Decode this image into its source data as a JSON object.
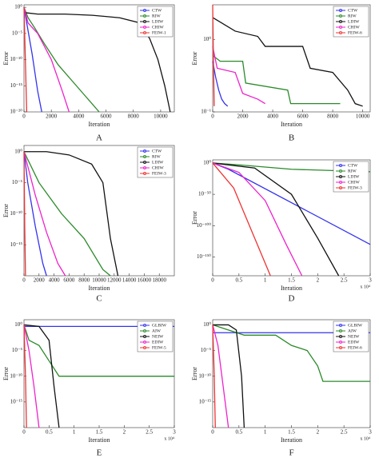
{
  "chart_data": [
    {
      "type": "line",
      "caption": "A",
      "x_label": "Iteration",
      "y_label": "Error",
      "log_y": true,
      "legend": "upper right",
      "xlim": [
        0,
        11000
      ],
      "xticks": [
        0,
        2000,
        4000,
        6000,
        8000,
        10000
      ],
      "ylim": [
        1e-20,
        3
      ],
      "yticks": [
        {
          "value": 1,
          "label": "10⁰"
        },
        {
          "value": 1e-05,
          "label": "10⁻⁵"
        },
        {
          "value": 1e-10,
          "label": "10⁻¹⁰"
        },
        {
          "value": 1e-15,
          "label": "10⁻¹⁵"
        },
        {
          "value": 1e-20,
          "label": "10⁻²⁰"
        }
      ],
      "series": [
        {
          "name": "CTW",
          "color": "#3333ee",
          "x": [
            0,
            200,
            600,
            1000,
            1300
          ],
          "values": [
            1,
            0.001,
            1e-09,
            1e-16,
            1e-20
          ]
        },
        {
          "name": "RIW",
          "color": "#2a8a2a",
          "x": [
            0,
            300,
            800,
            1500,
            2500,
            3500,
            4500,
            5500
          ],
          "values": [
            1,
            0.01,
            0.0001,
            1e-07,
            1e-11,
            1e-14,
            1e-17,
            1e-20
          ]
        },
        {
          "name": "LDIW",
          "color": "#111111",
          "x": [
            0,
            1000,
            3000,
            5000,
            7000,
            8500,
            9200,
            9800,
            10300,
            10700
          ],
          "values": [
            0.1,
            0.05,
            0.05,
            0.03,
            0.01,
            0.001,
            1e-06,
            1e-10,
            1e-15,
            1e-20
          ]
        },
        {
          "name": "CHIW",
          "color": "#ee22cc",
          "x": [
            0,
            300,
            1000,
            2000,
            2800,
            3300
          ],
          "values": [
            1,
            0.001,
            1e-05,
            1e-10,
            1e-16,
            1e-20
          ]
        },
        {
          "name": "FEIW-1",
          "color": "#ee3333",
          "x": [
            0,
            100,
            200
          ],
          "values": [
            1,
            1e-10,
            1e-20
          ]
        }
      ]
    },
    {
      "type": "line",
      "caption": "B",
      "x_label": "Iteration",
      "y_label": "Error",
      "log_y": true,
      "legend": "upper right",
      "xlim": [
        0,
        10500
      ],
      "xticks": [
        0,
        2000,
        4000,
        6000,
        8000,
        10000
      ],
      "ylim": [
        0.1,
        3
      ],
      "yticks": [
        {
          "value": 1,
          "label": "10⁰"
        },
        {
          "value": 0.1,
          "label": "10⁻¹"
        }
      ],
      "series": [
        {
          "name": "CTW",
          "color": "#3333ee",
          "x": [
            0,
            200,
            400,
            600,
            800,
            1000
          ],
          "values": [
            0.5,
            0.3,
            0.2,
            0.15,
            0.13,
            0.12
          ]
        },
        {
          "name": "RIW",
          "color": "#2a8a2a",
          "x": [
            0,
            500,
            2000,
            2200,
            5000,
            5200,
            8500
          ],
          "values": [
            0.6,
            0.5,
            0.5,
            0.25,
            0.2,
            0.13,
            0.13
          ]
        },
        {
          "name": "LDIW",
          "color": "#111111",
          "x": [
            0,
            1500,
            3000,
            3500,
            6000,
            6500,
            8000,
            9000,
            9500,
            10000
          ],
          "values": [
            2,
            1.3,
            1.1,
            0.8,
            0.8,
            0.4,
            0.35,
            0.2,
            0.13,
            0.12
          ]
        },
        {
          "name": "CHIW",
          "color": "#ee22cc",
          "x": [
            0,
            300,
            1500,
            2000,
            3000,
            3500
          ],
          "values": [
            0.8,
            0.4,
            0.35,
            0.18,
            0.15,
            0.13
          ]
        },
        {
          "name": "FEIW-6",
          "color": "#ee3333",
          "x": [
            0,
            50,
            100
          ],
          "values": [
            3,
            0.5,
            0.12
          ]
        }
      ]
    },
    {
      "type": "line",
      "caption": "C",
      "x_label": "Iteration",
      "y_label": "Error",
      "log_y": true,
      "legend": "upper right",
      "xlim": [
        0,
        20000
      ],
      "xticks": [
        0,
        2000,
        4000,
        6000,
        8000,
        10000,
        12000,
        14000,
        16000,
        18000
      ],
      "ylim": [
        1e-20,
        10
      ],
      "yticks": [
        {
          "value": 1,
          "label": "10⁰"
        },
        {
          "value": 1e-05,
          "label": "10⁻⁵"
        },
        {
          "value": 1e-10,
          "label": "10⁻¹⁰"
        },
        {
          "value": 1e-15,
          "label": "10⁻¹⁵"
        }
      ],
      "series": [
        {
          "name": "CTW",
          "color": "#3333ee",
          "x": [
            0,
            500,
            1500,
            2500,
            3000
          ],
          "values": [
            1,
            1e-05,
            1e-12,
            1e-18,
            1e-20
          ]
        },
        {
          "name": "RIW",
          "color": "#2a8a2a",
          "x": [
            0,
            2000,
            5000,
            8000,
            10500,
            11500
          ],
          "values": [
            1,
            1e-05,
            1e-10,
            1e-14,
            1e-19,
            1e-20
          ]
        },
        {
          "name": "LDIW",
          "color": "#111111",
          "x": [
            0,
            3000,
            6000,
            9000,
            10500,
            11500,
            12500
          ],
          "values": [
            1,
            1,
            0.3,
            0.01,
            1e-05,
            1e-14,
            1e-20
          ]
        },
        {
          "name": "CHIW",
          "color": "#ee22cc",
          "x": [
            0,
            1500,
            3000,
            4500,
            5500
          ],
          "values": [
            1,
            1e-07,
            1e-13,
            1e-18,
            1e-20
          ]
        },
        {
          "name": "FEIW-3",
          "color": "#ee3333",
          "x": [
            0,
            100,
            200
          ],
          "values": [
            1,
            1e-12,
            1e-20
          ]
        }
      ]
    },
    {
      "type": "line",
      "caption": "D",
      "x_label": "Iteration",
      "y_label": "Error",
      "log_y": true,
      "legend": "upper right",
      "x_multiplier": "x 10⁴",
      "xlim": [
        0,
        3
      ],
      "xticks": [
        0,
        0.5,
        1,
        1.5,
        2,
        2.5,
        3
      ],
      "ylim": [
        1e-180,
        100000
      ],
      "yticks": [
        {
          "value": 1,
          "label": "10⁰"
        },
        {
          "value": 1e-50,
          "label": "10⁻⁵⁰"
        },
        {
          "value": 1e-100,
          "label": "10⁻¹⁰⁰"
        },
        {
          "value": 1e-150,
          "label": "10⁻¹⁵⁰"
        }
      ],
      "series": [
        {
          "name": "CTW",
          "color": "#3333ee",
          "x": [
            0,
            0.3,
            3
          ],
          "values": [
            1,
            1e-10,
            1e-130
          ]
        },
        {
          "name": "RIW",
          "color": "#2a8a2a",
          "x": [
            0,
            0.5,
            1.5,
            3
          ],
          "values": [
            1,
            0.001,
            1e-10,
            1e-14
          ]
        },
        {
          "name": "LDIW",
          "color": "#111111",
          "x": [
            0,
            0.8,
            1.5,
            2,
            2.4
          ],
          "values": [
            1,
            1e-08,
            1e-50,
            1e-120,
            1e-180
          ]
        },
        {
          "name": "CHIW",
          "color": "#ee22cc",
          "x": [
            0,
            0.5,
            1,
            1.4,
            1.7
          ],
          "values": [
            1,
            1e-15,
            1e-60,
            1e-130,
            1e-180
          ]
        },
        {
          "name": "FEIW-3",
          "color": "#ee3333",
          "x": [
            0,
            0.4,
            0.8,
            1.1
          ],
          "values": [
            1,
            1e-40,
            1e-120,
            1e-180
          ]
        }
      ]
    },
    {
      "type": "line",
      "caption": "E",
      "x_label": "Iteration",
      "y_label": "Error",
      "log_y": true,
      "legend": "upper right",
      "x_multiplier": "x 10⁴",
      "xlim": [
        0,
        3
      ],
      "xticks": [
        0,
        0.5,
        1,
        1.5,
        2,
        2.5,
        3
      ],
      "ylim": [
        1e-20,
        10
      ],
      "yticks": [
        {
          "value": 1,
          "label": "10⁰"
        },
        {
          "value": 1e-05,
          "label": "10⁻⁵"
        },
        {
          "value": 1e-10,
          "label": "10⁻¹⁰"
        },
        {
          "value": 1e-15,
          "label": "10⁻¹⁵"
        }
      ],
      "series": [
        {
          "name": "GLBIW",
          "color": "#3333ee",
          "x": [
            0,
            3
          ],
          "values": [
            0.5,
            0.5
          ]
        },
        {
          "name": "AIW",
          "color": "#2a8a2a",
          "x": [
            0,
            0.1,
            0.3,
            0.5,
            0.7,
            3
          ],
          "values": [
            1,
            0.001,
            0.0001,
            1e-07,
            1e-10,
            1e-10
          ]
        },
        {
          "name": "NEIW",
          "color": "#111111",
          "x": [
            0,
            0.3,
            0.5,
            0.6,
            0.7
          ],
          "values": [
            1,
            0.5,
            0.001,
            1e-12,
            1e-20
          ]
        },
        {
          "name": "EDIW",
          "color": "#ee22cc",
          "x": [
            0,
            0.1,
            0.2,
            0.3
          ],
          "values": [
            1,
            1e-05,
            1e-12,
            1e-20
          ]
        },
        {
          "name": "FEIW-5",
          "color": "#ee3333",
          "x": [
            0,
            0.03,
            0.05
          ],
          "values": [
            1,
            1e-10,
            1e-20
          ]
        }
      ]
    },
    {
      "type": "line",
      "caption": "F",
      "x_label": "Iteration",
      "y_label": "Error",
      "log_y": true,
      "legend": "upper right",
      "x_multiplier": "x 10⁴",
      "xlim": [
        0,
        3
      ],
      "xticks": [
        0,
        0.5,
        1,
        1.5,
        2,
        2.5,
        3
      ],
      "ylim": [
        1e-20,
        10
      ],
      "yticks": [
        {
          "value": 1,
          "label": "10⁰"
        },
        {
          "value": 1e-05,
          "label": "10⁻⁵"
        },
        {
          "value": 1e-10,
          "label": "10⁻¹⁰"
        },
        {
          "value": 1e-15,
          "label": "10⁻¹⁵"
        }
      ],
      "series": [
        {
          "name": "GLBIW",
          "color": "#3333ee",
          "x": [
            0,
            3
          ],
          "values": [
            0.03,
            0.03
          ]
        },
        {
          "name": "AIW",
          "color": "#2a8a2a",
          "x": [
            0,
            0.3,
            0.6,
            1.2,
            1.5,
            1.8,
            2.0,
            2.1,
            3
          ],
          "values": [
            1,
            0.1,
            0.01,
            0.01,
            0.0001,
            1e-05,
            1e-08,
            1e-11,
            1e-11
          ]
        },
        {
          "name": "NEIW",
          "color": "#111111",
          "x": [
            0,
            0.3,
            0.45,
            0.55,
            0.6
          ],
          "values": [
            1,
            1,
            0.1,
            1e-10,
            1e-20
          ]
        },
        {
          "name": "EDIW",
          "color": "#ee22cc",
          "x": [
            0,
            0.1,
            0.2,
            0.3
          ],
          "values": [
            1,
            0.0001,
            1e-12,
            1e-20
          ]
        },
        {
          "name": "FEIW-6",
          "color": "#ee3333",
          "x": [
            0,
            0.03,
            0.05
          ],
          "values": [
            1,
            1e-10,
            1e-20
          ]
        }
      ]
    }
  ]
}
